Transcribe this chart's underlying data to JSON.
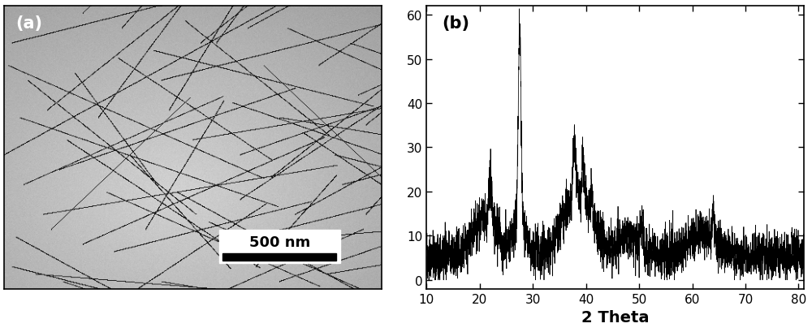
{
  "panel_b_label": "(b)",
  "panel_a_label": "(a)",
  "xlabel": "2 Theta",
  "xlim": [
    10,
    81
  ],
  "ylim": [
    -2,
    62
  ],
  "yticks": [
    0,
    10,
    20,
    30,
    40,
    50,
    60
  ],
  "xticks": [
    10,
    20,
    30,
    40,
    50,
    60,
    70,
    80
  ],
  "scalebar_text": "500 nm",
  "label_fontsize": 15,
  "tick_fontsize": 11,
  "xlabel_fontsize": 14,
  "background_color": "#ffffff",
  "line_color": "#000000",
  "seed": 7
}
